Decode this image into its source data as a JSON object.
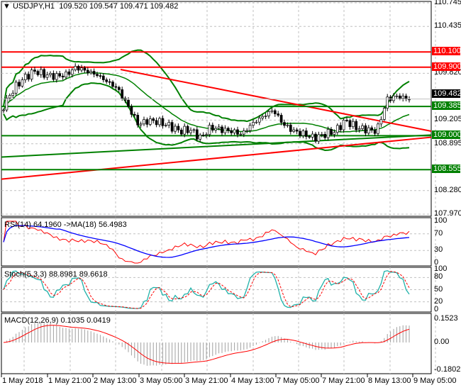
{
  "header": {
    "symbol": "USDJPY,H1",
    "ohlc": "109.520 109.547 109.471 109.482"
  },
  "colors": {
    "support": "#008000",
    "resistance": "#ff0000",
    "bollinger": "#008000",
    "rsi": "#ff0000",
    "rsi_ma": "#0000ff",
    "stoch_main": "#20b2aa",
    "stoch_signal": "#ff0000",
    "macd_hist": "#a0a0a0",
    "macd_signal": "#ff0000"
  },
  "chart_data": [
    {
      "type": "candlestick",
      "title": "USDJPY,H1",
      "ylim": [
        107.97,
        110.745
      ],
      "y_ticks": [
        "110.745",
        "110.435",
        "109.820",
        "109.205",
        "108.895",
        "108.280",
        "107.970"
      ],
      "x_ticks": [
        "1 May 2018",
        "1 May 21:00",
        "2 May 13:00",
        "3 May 05:00",
        "3 May 21:00",
        "4 May 13:00",
        "7 May 05:00",
        "7 May 21:00",
        "8 May 13:00",
        "9 May 05:00"
      ],
      "closes": [
        109.39,
        109.62,
        109.76,
        109.85,
        109.8,
        109.78,
        109.8,
        109.9,
        109.85,
        109.8,
        109.71,
        109.62,
        109.39,
        109.15,
        109.2,
        109.18,
        109.13,
        109.06,
        109.08,
        108.97,
        109.11,
        109.08,
        109.06,
        109.02,
        109.16,
        109.25,
        109.34,
        109.15,
        109.06,
        109.02,
        108.97,
        109.02,
        109.06,
        109.2,
        109.11,
        109.08,
        109.06,
        109.48,
        109.52,
        109.482
      ],
      "levels": [
        {
          "value": 110.1,
          "label": "110.100",
          "kind": "resistance"
        },
        {
          "value": 109.9,
          "label": "109.900",
          "kind": "resistance"
        },
        {
          "value": 109.385,
          "label": "109.385",
          "kind": "support"
        },
        {
          "value": 109.0,
          "label": "109.000",
          "kind": "support"
        },
        {
          "value": 108.555,
          "label": "108.555",
          "kind": "support"
        }
      ],
      "last_price": "109.482"
    },
    {
      "type": "line",
      "name": "RSI(14)",
      "label": "RSI(14) 64.1960  ->MA(18) 56.4983",
      "ylim": [
        0,
        100
      ],
      "y_ticks": [
        "100",
        "70",
        "30",
        "0"
      ]
    },
    {
      "type": "line",
      "name": "Stoch(5,3,3)",
      "label": "Stoch(5,3,3) 88.8981 89.6618",
      "ylim": [
        0,
        100
      ],
      "y_ticks": [
        "100",
        "80",
        "50",
        "20",
        "0"
      ]
    },
    {
      "type": "bar",
      "name": "MACD(12,26,9)",
      "label": "MACD(12,26,9) 0.1035 0.0419",
      "ylim": [
        -0.1802,
        0.1523
      ],
      "y_ticks": [
        "0.1523",
        "0.00",
        "-0.1802"
      ]
    }
  ]
}
